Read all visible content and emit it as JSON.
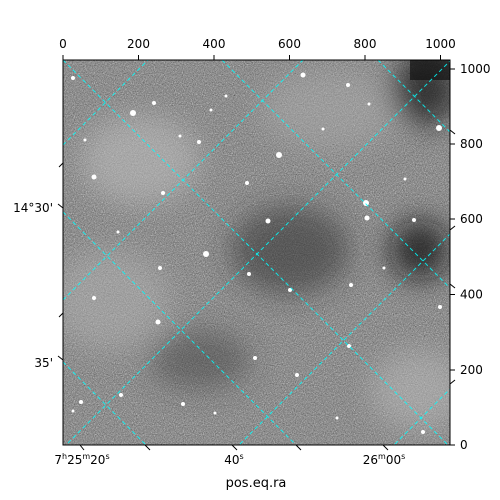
{
  "figure": {
    "xlabel": "pos.eq.ra",
    "top_ticks": [
      "0",
      "200",
      "400",
      "600",
      "800",
      "1000"
    ],
    "right_ticks": [
      "0",
      "200",
      "400",
      "600",
      "800",
      "1000"
    ],
    "ra_ticks": [
      {
        "h": "7",
        "m": "25",
        "s": "20",
        "show_hm": true
      },
      {
        "s": "40",
        "show_hm": false
      },
      {
        "m": "26",
        "s": "00",
        "show_hm": false,
        "show_m": true
      }
    ],
    "dec_ticks": [
      "14°30'",
      "35'"
    ],
    "grid_color": "#00ffff",
    "sky_background": "grayscale noise image"
  }
}
